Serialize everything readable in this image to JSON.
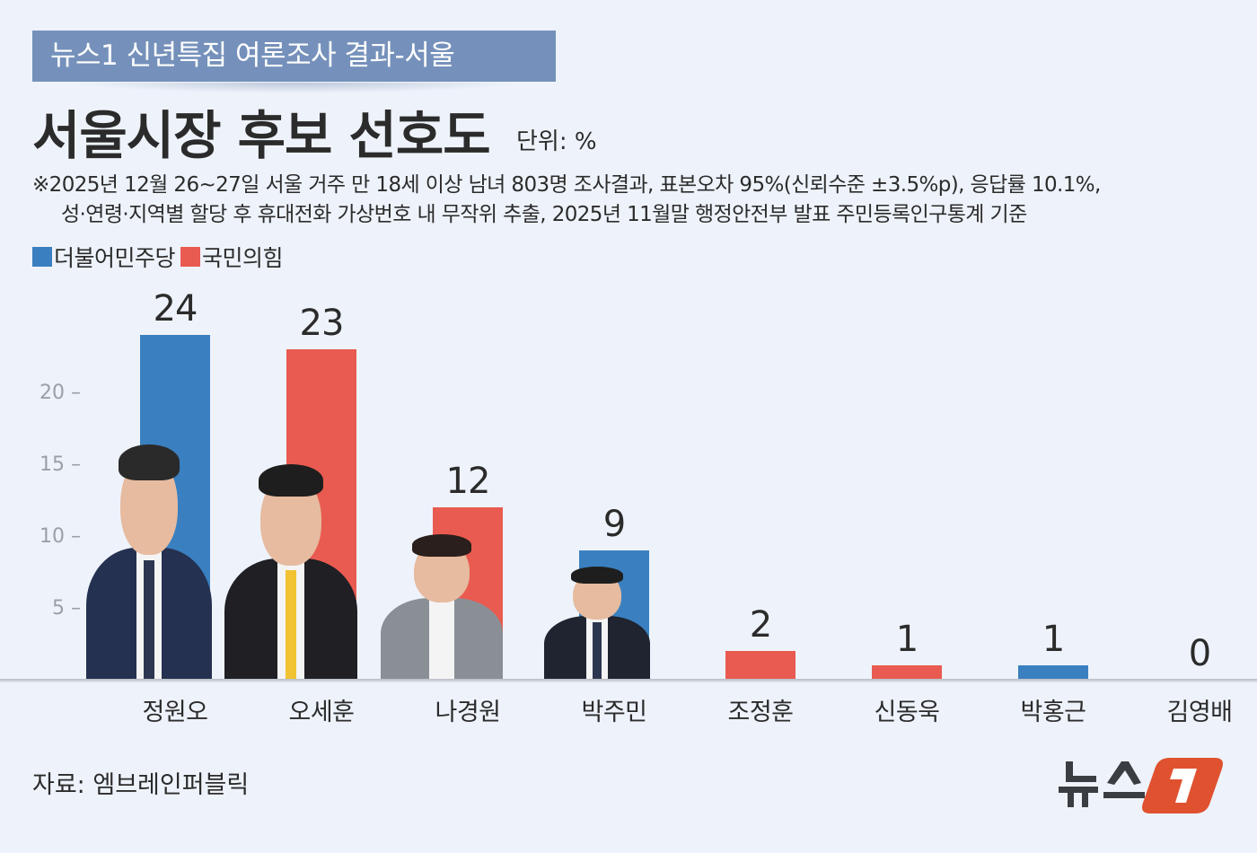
{
  "header": {
    "banner": "뉴스1 신년특집 여론조사 결과-서울",
    "title": "서울시장 후보 선호도",
    "unit": "단위: %"
  },
  "note": {
    "line1": "※2025년 12월 26~27일 서울 거주 만 18세 이상 남녀 803명 조사결과, 표본오차 95%(신뢰수준 ±3.5%p), 응답률 10.1%,",
    "line2": "성·연령·지역별 할당 후 휴대전화 가상번호 내 무작위 추출,  2025년 11월말 행정안전부 발표 주민등록인구통계 기준"
  },
  "legend": [
    {
      "label": "더불어민주당",
      "color": "#3a80c0"
    },
    {
      "label": "국민의힘",
      "color": "#e95b50"
    }
  ],
  "yaxis": {
    "ticks": [
      "20 –",
      "15 –",
      "10 –",
      "5 –"
    ]
  },
  "source": "자료: 엠브레인퍼블릭",
  "logo": {
    "text": "뉴스",
    "mark": "1"
  },
  "colors": {
    "democratic": "#3a80c0",
    "ppp": "#e95b50",
    "banner": "#7591bb",
    "background": "#eef3fb",
    "logo_orange": "#e0512f"
  },
  "chart_data": {
    "type": "bar",
    "title": "서울시장 후보 선호도",
    "subtitle": "뉴스1 신년특집 여론조사 결과-서울",
    "unit": "%",
    "xlabel": "",
    "ylabel": "",
    "ylim": [
      0,
      25
    ],
    "yticks": [
      5,
      10,
      15,
      20
    ],
    "grid": false,
    "legend_position": "top-left",
    "categories": [
      "정원오",
      "오세훈",
      "나경원",
      "박주민",
      "조정훈",
      "신동욱",
      "박홍근",
      "김영배"
    ],
    "values": [
      24,
      23,
      12,
      9,
      2,
      1,
      1,
      0
    ],
    "value_labels": [
      "24",
      "23",
      "12",
      "9",
      "2",
      "1",
      "1",
      "0"
    ],
    "party": [
      "더불어민주당",
      "국민의힘",
      "국민의힘",
      "더불어민주당",
      "국민의힘",
      "국민의힘",
      "더불어민주당",
      "더불어민주당"
    ],
    "series": [
      {
        "name": "더불어민주당",
        "color": "#3a80c0",
        "values": [
          24,
          null,
          null,
          9,
          null,
          null,
          1,
          0
        ]
      },
      {
        "name": "국민의힘",
        "color": "#e95b50",
        "values": [
          null,
          23,
          12,
          null,
          2,
          1,
          null,
          null
        ]
      }
    ],
    "source": "자료: 엠브레인퍼블릭"
  }
}
